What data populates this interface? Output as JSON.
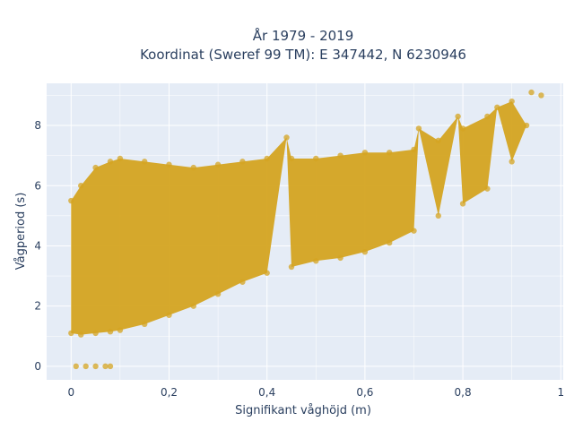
{
  "chart_data": {
    "type": "scatter",
    "title": [
      "År 1979 - 2019",
      "Koordinat (Sweref 99 TM): E 347442, N 6230946"
    ],
    "xlabel": "Signifikant våghöjd (m)",
    "ylabel": "Vågperiod (s)",
    "xlim": [
      -0.05,
      1.005
    ],
    "ylim": [
      -0.45,
      9.4
    ],
    "x_ticks": [
      0,
      0.2,
      0.4,
      0.6,
      0.8,
      1
    ],
    "x_tick_labels": [
      "0",
      "0,2",
      "0,4",
      "0,6",
      "0,8",
      "1"
    ],
    "y_ticks": [
      0,
      2,
      4,
      6,
      8
    ],
    "y_tick_labels": [
      "0",
      "2",
      "4",
      "6",
      "8"
    ],
    "grid": true,
    "marker_color": "#d4a421",
    "background_color": "#e5ecf6",
    "series": [
      {
        "points": [
          [
            0.0,
            1.1
          ],
          [
            0.0,
            5.5
          ],
          [
            0.02,
            1.05
          ],
          [
            0.02,
            6.0
          ],
          [
            0.05,
            1.1
          ],
          [
            0.05,
            6.6
          ],
          [
            0.08,
            1.15
          ],
          [
            0.08,
            6.8
          ],
          [
            0.1,
            1.2
          ],
          [
            0.1,
            6.9
          ],
          [
            0.15,
            1.4
          ],
          [
            0.15,
            6.8
          ],
          [
            0.2,
            1.7
          ],
          [
            0.2,
            6.7
          ],
          [
            0.25,
            2.0
          ],
          [
            0.25,
            6.6
          ],
          [
            0.3,
            2.4
          ],
          [
            0.3,
            6.7
          ],
          [
            0.35,
            2.8
          ],
          [
            0.35,
            6.8
          ],
          [
            0.4,
            3.1
          ],
          [
            0.4,
            6.9
          ],
          [
            0.45,
            3.3
          ],
          [
            0.45,
            6.9
          ],
          [
            0.5,
            3.5
          ],
          [
            0.5,
            6.9
          ],
          [
            0.55,
            3.6
          ],
          [
            0.55,
            7.0
          ],
          [
            0.6,
            3.8
          ],
          [
            0.6,
            7.1
          ],
          [
            0.65,
            4.1
          ],
          [
            0.65,
            7.1
          ],
          [
            0.7,
            4.5
          ],
          [
            0.7,
            7.2
          ],
          [
            0.75,
            5.0
          ],
          [
            0.75,
            7.5
          ],
          [
            0.8,
            5.4
          ],
          [
            0.8,
            7.9
          ],
          [
            0.85,
            5.9
          ],
          [
            0.85,
            8.3
          ],
          [
            0.9,
            6.8
          ],
          [
            0.9,
            8.8
          ],
          [
            0.93,
            8.0
          ],
          [
            0.94,
            9.1
          ],
          [
            0.96,
            9.0
          ],
          [
            0.44,
            7.6
          ],
          [
            0.71,
            7.9
          ],
          [
            0.79,
            8.3
          ],
          [
            0.87,
            8.6
          ],
          [
            0.01,
            0.0
          ],
          [
            0.03,
            0.0
          ],
          [
            0.05,
            0.0
          ],
          [
            0.07,
            0.0
          ],
          [
            0.08,
            0.0
          ]
        ]
      }
    ]
  }
}
